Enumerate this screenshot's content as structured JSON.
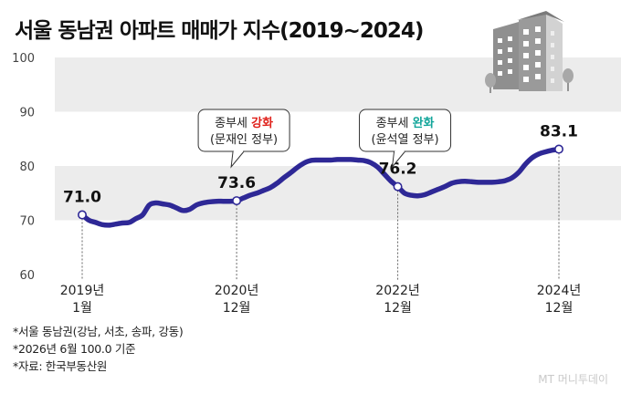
{
  "title": "서울 동남권 아파트 매매가 지수(2019~2024)",
  "chart_data": {
    "type": "line",
    "title": "서울 동남권 아파트 매매가 지수(2019~2024)",
    "xlabel": "",
    "ylabel": "",
    "ylim": [
      60,
      100
    ],
    "yticks": [
      60,
      70,
      80,
      90,
      100
    ],
    "grid": "alternating horizontal bands",
    "line_color": "#2e2896",
    "x_tick_labels": [
      {
        "month_index": 0,
        "line1": "2019년",
        "line2": "1월"
      },
      {
        "month_index": 23,
        "line1": "2020년",
        "line2": "12월"
      },
      {
        "month_index": 47,
        "line1": "2022년",
        "line2": "12월"
      },
      {
        "month_index": 71,
        "line1": "2024년",
        "line2": "12월"
      }
    ],
    "series": [
      {
        "values": [
          71.0,
          70.0,
          69.6,
          69.2,
          69.1,
          69.3,
          69.5,
          69.6,
          70.3,
          71.0,
          72.8,
          73.2,
          73.0,
          72.8,
          72.3,
          71.8,
          72.0,
          72.8,
          73.2,
          73.4,
          73.5,
          73.5,
          73.5,
          73.6,
          74.1,
          74.6,
          75.0,
          75.5,
          76.0,
          76.8,
          77.8,
          78.7,
          79.7,
          80.5,
          81.0,
          81.1,
          81.1,
          81.1,
          81.2,
          81.2,
          81.2,
          81.1,
          81.0,
          80.6,
          79.8,
          78.5,
          77.2,
          76.2,
          75.0,
          74.6,
          74.5,
          74.7,
          75.2,
          75.7,
          76.2,
          76.8,
          77.1,
          77.2,
          77.1,
          77.0,
          77.0,
          77.0,
          77.1,
          77.3,
          77.8,
          78.8,
          80.3,
          81.5,
          82.2,
          82.6,
          82.9,
          83.1
        ]
      }
    ],
    "data_labels": [
      {
        "month_index": 0,
        "text": "71.0"
      },
      {
        "month_index": 23,
        "text": "73.6"
      },
      {
        "month_index": 47,
        "text": "76.2"
      },
      {
        "month_index": 71,
        "text": "83.1"
      }
    ],
    "annotations": [
      {
        "month_index": 23,
        "line1_a": "종부세 ",
        "line1_b": "강화",
        "line1_b_color": "#e0201a",
        "line2": "(문재인 정부)"
      },
      {
        "month_index": 47,
        "line1_a": "종부세 ",
        "line1_b": "완화",
        "line1_b_color": "#12a59a",
        "line2": "(윤석열 정부)"
      }
    ]
  },
  "notes": [
    "*서울 동남권(강남, 서초, 송파, 강동)",
    "*2026년 6월 100.0 기준",
    "*자료: 한국부동산원"
  ],
  "credit": "MT 머니투데이",
  "illustration_icon": "apartment-buildings-icon"
}
